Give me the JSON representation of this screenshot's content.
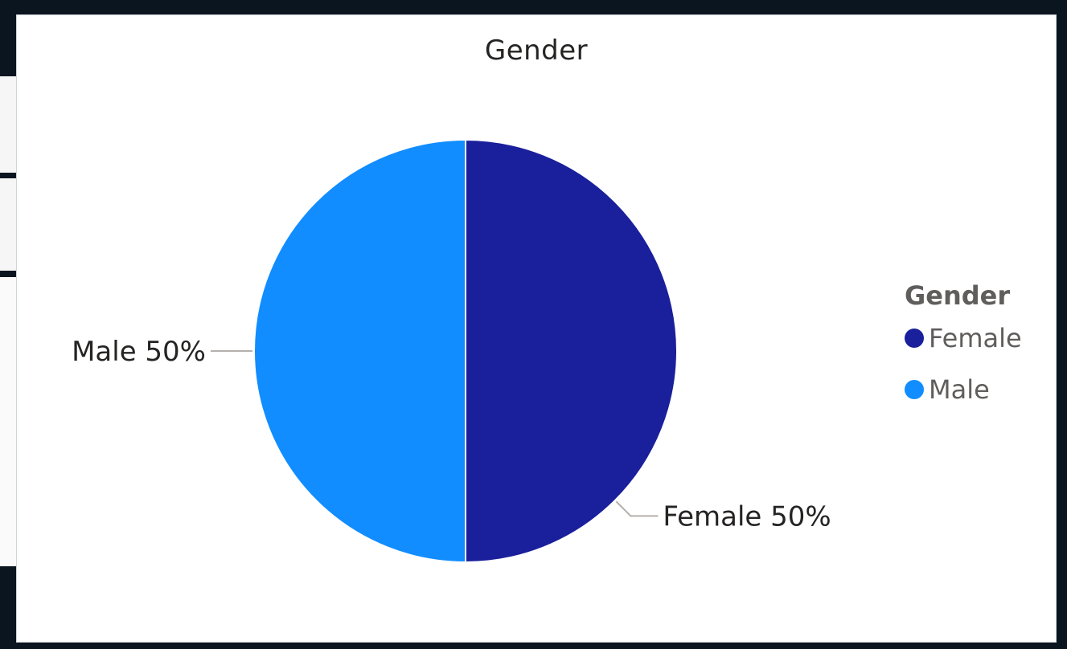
{
  "chart_data": {
    "type": "pie",
    "title": "Gender",
    "categories": [
      "Female",
      "Male"
    ],
    "values": [
      50,
      50
    ],
    "unit": "%",
    "data_labels": [
      "Female 50%",
      "Male 50%"
    ],
    "colors": [
      "#1a1f9b",
      "#118dff"
    ],
    "legend": {
      "title": "Gender",
      "placement": "right",
      "items": [
        "Female",
        "Male"
      ]
    }
  }
}
